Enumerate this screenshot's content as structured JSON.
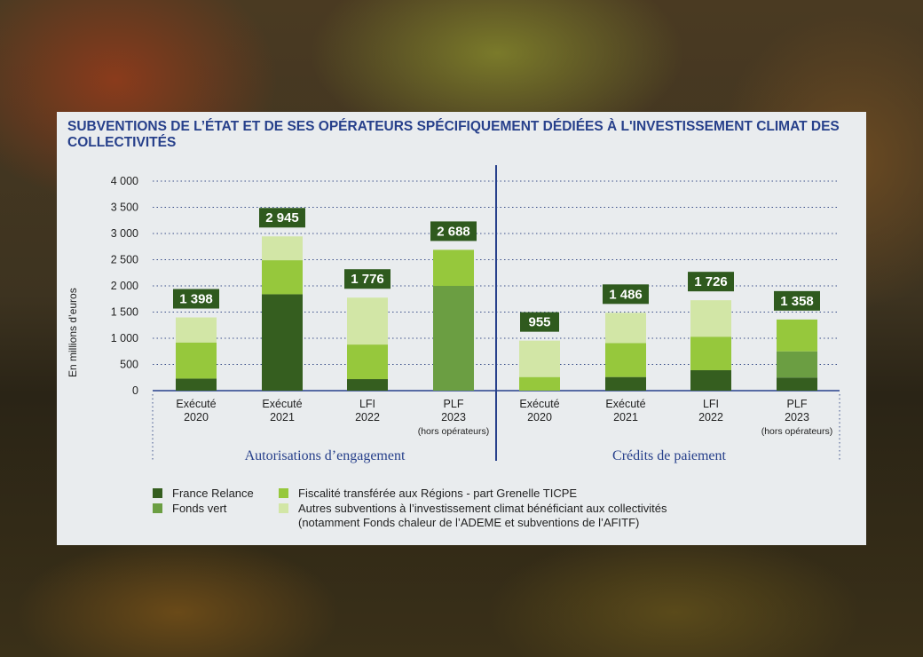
{
  "title": "SUBVENTIONS DE L’ÉTAT ET DE SES OPÉRATEURS SPÉCIFIQUEMENT DÉDIÉES À L'INVESTISSEMENT CLIMAT DES COLLECTIVITÉS",
  "colors": {
    "title": "#27408b",
    "france_relance": "#355e1f",
    "fonds_vert": "#6b9e42",
    "fiscalite": "#96c83c",
    "autres": "#d2e6a6",
    "total_badge": "#2f5a1e",
    "divider": "#27408b"
  },
  "chart_data": {
    "type": "bar",
    "stacked": true,
    "ylabel": "En millions d’euros",
    "ylim": [
      0,
      4000
    ],
    "yticks": [
      "4 000",
      "3 500",
      "3 000",
      "2 500",
      "2 000",
      "1 500",
      "1 000",
      "500",
      "0"
    ],
    "ytick_values": [
      4000,
      3500,
      3000,
      2500,
      2000,
      1500,
      1000,
      500,
      0
    ],
    "grid": true,
    "groups": [
      {
        "label": "Autorisations d’engagement",
        "categories": [
          {
            "line1": "Exécuté",
            "line2": "2020",
            "line3": ""
          },
          {
            "line1": "Exécuté",
            "line2": "2021",
            "line3": ""
          },
          {
            "line1": "LFI",
            "line2": "2022",
            "line3": ""
          },
          {
            "line1": "PLF",
            "line2": "2023",
            "line3": "(hors opérateurs)"
          }
        ],
        "totals": [
          "1 398",
          "2 945",
          "1 776",
          "2 688"
        ],
        "total_values": [
          1398,
          2945,
          1776,
          2688
        ]
      },
      {
        "label": "Crédits de paiement",
        "categories": [
          {
            "line1": "Exécuté",
            "line2": "2020",
            "line3": ""
          },
          {
            "line1": "Exécuté",
            "line2": "2021",
            "line3": ""
          },
          {
            "line1": "LFI",
            "line2": "2022",
            "line3": ""
          },
          {
            "line1": "PLF",
            "line2": "2023",
            "line3": "(hors opérateurs)"
          }
        ],
        "totals": [
          "955",
          "1 486",
          "1 726",
          "1 358"
        ],
        "total_values": [
          955,
          1486,
          1726,
          1358
        ]
      }
    ],
    "series": [
      {
        "name": "France Relance",
        "color_key": "france_relance",
        "values": [
          230,
          1840,
          220,
          0,
          0,
          260,
          390,
          250
        ]
      },
      {
        "name": "Fonds vert",
        "color_key": "fonds_vert",
        "values": [
          0,
          0,
          0,
          2000,
          0,
          0,
          0,
          500
        ]
      },
      {
        "name": "Fiscalité transférée aux Régions - part Grenelle TICPE",
        "color_key": "fiscalite",
        "values": [
          690,
          650,
          660,
          688,
          260,
          650,
          640,
          608
        ]
      },
      {
        "name": "Autres subventions à l’investissement climat bénéficiant aux collectivités",
        "color_key": "autres",
        "values": [
          478,
          455,
          896,
          0,
          695,
          576,
          696,
          0
        ]
      }
    ],
    "legend_note": "(notamment Fonds chaleur de l’ADEME et subventions de l’AFITF)",
    "legend_position": "bottom"
  }
}
